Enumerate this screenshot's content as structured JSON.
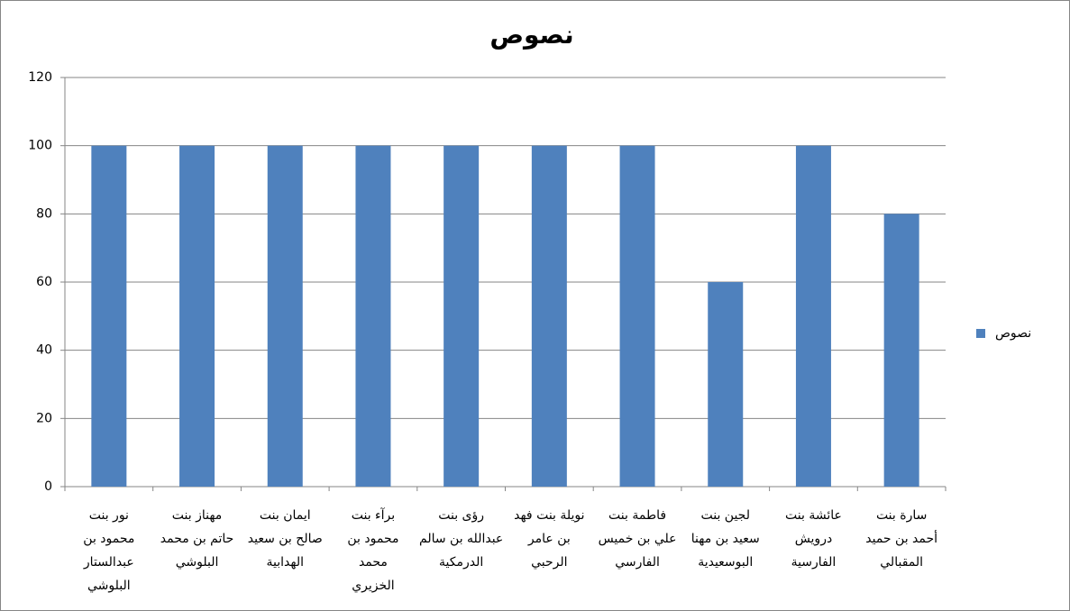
{
  "chart_data": {
    "type": "bar",
    "title": "نصوص",
    "categories": [
      "نور بنت\nمحمود بن\nعبدالستار\nالبلوشي",
      "مهناز بنت\nحاتم بن محمد\nالبلوشي",
      "ايمان بنت\nصالح بن سعيد\nالهدابية",
      "برآء بنت\nمحمود بن\nمحمد\nالخزيري",
      "رؤى بنت\nعبدالله بن سالم\nالدرمكية",
      "نويلة بنت فهد\nبن عامر\nالرحبي",
      "فاطمة بنت\nعلي بن خميس\nالفارسي",
      "لجين بنت\nسعيد بن مهنا\nالبوسعيدية",
      "عائشة بنت\nدرويش\nالفارسية",
      "سارة بنت\nأحمد بن حميد\nالمقبالي"
    ],
    "series": [
      {
        "name": "نصوص",
        "color": "#4f81bd",
        "values": [
          100,
          100,
          100,
          100,
          100,
          100,
          100,
          60,
          100,
          80
        ]
      }
    ],
    "ylim": [
      0,
      120
    ],
    "yticks": [
      0,
      20,
      40,
      60,
      80,
      100,
      120
    ],
    "grid": true,
    "legend": "right"
  }
}
